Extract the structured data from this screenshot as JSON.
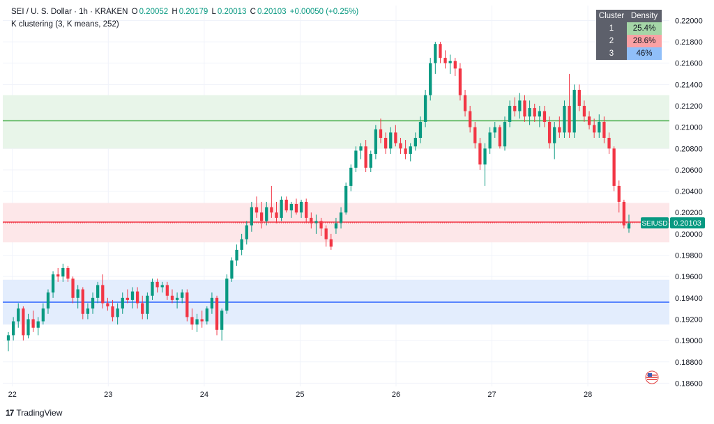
{
  "legend": {
    "symbol_line": "SEI / U. S. Dollar · 1h · KRAKEN",
    "open_label": "O",
    "open": "0.20052",
    "high_label": "H",
    "high": "0.20179",
    "low_label": "L",
    "low": "0.20013",
    "close_label": "C",
    "close": "0.20103",
    "change": "+0.00050 (+0.25%)",
    "indicator": "K clustering (3, K means, 252)"
  },
  "cluster_table": {
    "headers": [
      "Cluster",
      "Density"
    ],
    "rows": [
      {
        "cluster": "1",
        "density": "25.4%",
        "color": "#a5d6a7"
      },
      {
        "cluster": "2",
        "density": "28.6%",
        "color": "#faa1a4"
      },
      {
        "cluster": "3",
        "density": "46%",
        "color": "#90bff9"
      }
    ]
  },
  "price_tag": {
    "symbol": "SEIUSD",
    "price": "0.20103",
    "color": "#089981"
  },
  "watermark": {
    "logo": "17",
    "name": "TradingView"
  },
  "colors": {
    "up": "#089981",
    "down": "#f23645",
    "grid": "#f0f3fa",
    "axis_text": "#131722"
  },
  "chart_data": {
    "type": "candlestick",
    "x_ticks": [
      "22",
      "23",
      "24",
      "25",
      "26",
      "27",
      "28"
    ],
    "y_ticks": [
      "0.22000",
      "0.21800",
      "0.21600",
      "0.21400",
      "0.21200",
      "0.21000",
      "0.20800",
      "0.20600",
      "0.20400",
      "0.20200",
      "0.20000",
      "0.19800",
      "0.19600",
      "0.19400",
      "0.19200",
      "0.19000",
      "0.18800",
      "0.18600"
    ],
    "ylim": [
      0.1857,
      0.2214
    ],
    "x_range": [
      21.9,
      28.85
    ],
    "bands": [
      {
        "name": "1",
        "top": 0.213,
        "bottom": 0.208,
        "center": 0.2106,
        "fill": "#e8f5e9",
        "line": "#4caf50"
      },
      {
        "name": "2",
        "top": 0.2029,
        "bottom": 0.1992,
        "center": 0.2011,
        "fill": "#fde7e9",
        "line": "#f23645"
      },
      {
        "name": "3",
        "top": 0.1957,
        "bottom": 0.1915,
        "center": 0.1936,
        "fill": "#e3edfd",
        "line": "#2962ff"
      }
    ],
    "candles": [
      [
        0.19,
        0.1908,
        0.189,
        0.1905
      ],
      [
        0.1905,
        0.1922,
        0.19,
        0.1918
      ],
      [
        0.1918,
        0.1935,
        0.1912,
        0.193
      ],
      [
        0.193,
        0.1932,
        0.19,
        0.1905
      ],
      [
        0.1905,
        0.1925,
        0.1902,
        0.192
      ],
      [
        0.192,
        0.1928,
        0.1908,
        0.1912
      ],
      [
        0.1912,
        0.1922,
        0.1905,
        0.1918
      ],
      [
        0.1918,
        0.1935,
        0.1915,
        0.193
      ],
      [
        0.193,
        0.1948,
        0.1925,
        0.1945
      ],
      [
        0.1945,
        0.1965,
        0.194,
        0.1962
      ],
      [
        0.1962,
        0.1968,
        0.1955,
        0.196
      ],
      [
        0.196,
        0.1972,
        0.1955,
        0.1968
      ],
      [
        0.1968,
        0.197,
        0.1955,
        0.1958
      ],
      [
        0.1958,
        0.196,
        0.1935,
        0.194
      ],
      [
        0.194,
        0.1952,
        0.193,
        0.1948
      ],
      [
        0.1948,
        0.195,
        0.192,
        0.1925
      ],
      [
        0.1925,
        0.1935,
        0.192,
        0.193
      ],
      [
        0.193,
        0.1945,
        0.1925,
        0.194
      ],
      [
        0.194,
        0.1955,
        0.1935,
        0.1952
      ],
      [
        0.1952,
        0.1962,
        0.193,
        0.1935
      ],
      [
        0.1935,
        0.194,
        0.1928,
        0.1932
      ],
      [
        0.1932,
        0.1938,
        0.1918,
        0.1922
      ],
      [
        0.1922,
        0.1935,
        0.1915,
        0.193
      ],
      [
        0.193,
        0.1945,
        0.1925,
        0.194
      ],
      [
        0.194,
        0.1948,
        0.1935,
        0.1938
      ],
      [
        0.1938,
        0.195,
        0.193,
        0.1946
      ],
      [
        0.1946,
        0.195,
        0.193,
        0.1935
      ],
      [
        0.1935,
        0.1942,
        0.192,
        0.1925
      ],
      [
        0.1925,
        0.1945,
        0.192,
        0.1942
      ],
      [
        0.1942,
        0.1958,
        0.1938,
        0.1955
      ],
      [
        0.1955,
        0.1958,
        0.1945,
        0.195
      ],
      [
        0.195,
        0.1955,
        0.1945,
        0.1952
      ],
      [
        0.1952,
        0.1955,
        0.1938,
        0.1942
      ],
      [
        0.1942,
        0.1948,
        0.1935,
        0.1938
      ],
      [
        0.1938,
        0.1945,
        0.193,
        0.194
      ],
      [
        0.194,
        0.1948,
        0.1935,
        0.1945
      ],
      [
        0.1945,
        0.1948,
        0.1918,
        0.1922
      ],
      [
        0.1922,
        0.193,
        0.191,
        0.1915
      ],
      [
        0.1915,
        0.1925,
        0.1908,
        0.192
      ],
      [
        0.192,
        0.1928,
        0.1912,
        0.1918
      ],
      [
        0.1918,
        0.1932,
        0.1915,
        0.193
      ],
      [
        0.193,
        0.1945,
        0.1925,
        0.194
      ],
      [
        0.194,
        0.1942,
        0.1905,
        0.191
      ],
      [
        0.191,
        0.193,
        0.19,
        0.1928
      ],
      [
        0.1928,
        0.1962,
        0.1925,
        0.1958
      ],
      [
        0.1958,
        0.1978,
        0.1955,
        0.1975
      ],
      [
        0.1975,
        0.199,
        0.197,
        0.1985
      ],
      [
        0.1985,
        0.2,
        0.198,
        0.1995
      ],
      [
        0.1995,
        0.2012,
        0.199,
        0.2008
      ],
      [
        0.2008,
        0.203,
        0.2002,
        0.2025
      ],
      [
        0.2025,
        0.2035,
        0.2015,
        0.202
      ],
      [
        0.202,
        0.203,
        0.2005,
        0.2012
      ],
      [
        0.2012,
        0.203,
        0.2008,
        0.2025
      ],
      [
        0.2025,
        0.2045,
        0.2015,
        0.202
      ],
      [
        0.202,
        0.203,
        0.201,
        0.2015
      ],
      [
        0.2015,
        0.2035,
        0.2012,
        0.2032
      ],
      [
        0.2032,
        0.2035,
        0.202,
        0.2022
      ],
      [
        0.2022,
        0.203,
        0.2015,
        0.2028
      ],
      [
        0.2028,
        0.2033,
        0.2018,
        0.202
      ],
      [
        0.202,
        0.2032,
        0.2015,
        0.203
      ],
      [
        0.203,
        0.2033,
        0.201,
        0.2015
      ],
      [
        0.2015,
        0.202,
        0.2005,
        0.201
      ],
      [
        0.201,
        0.2018,
        0.2,
        0.2012
      ],
      [
        0.2012,
        0.2015,
        0.1998,
        0.2005
      ],
      [
        0.2005,
        0.2008,
        0.1988,
        0.1995
      ],
      [
        0.1995,
        0.2,
        0.1985,
        0.1988
      ],
      [
        0.2005,
        0.2015,
        0.2,
        0.201
      ],
      [
        0.201,
        0.2025,
        0.2005,
        0.202
      ],
      [
        0.202,
        0.2048,
        0.2018,
        0.2045
      ],
      [
        0.2045,
        0.2065,
        0.204,
        0.2062
      ],
      [
        0.2062,
        0.2082,
        0.2058,
        0.2078
      ],
      [
        0.2078,
        0.2085,
        0.207,
        0.2082
      ],
      [
        0.2082,
        0.2088,
        0.2058,
        0.2062
      ],
      [
        0.2062,
        0.2078,
        0.2058,
        0.2075
      ],
      [
        0.2075,
        0.2102,
        0.207,
        0.2098
      ],
      [
        0.2098,
        0.2108,
        0.2085,
        0.209
      ],
      [
        0.209,
        0.2095,
        0.2075,
        0.208
      ],
      [
        0.208,
        0.21,
        0.2075,
        0.2095
      ],
      [
        0.2095,
        0.2102,
        0.2082,
        0.2085
      ],
      [
        0.2085,
        0.209,
        0.2075,
        0.208
      ],
      [
        0.208,
        0.2088,
        0.207,
        0.2075
      ],
      [
        0.2075,
        0.2085,
        0.2068,
        0.2082
      ],
      [
        0.2082,
        0.2095,
        0.2078,
        0.209
      ],
      [
        0.209,
        0.211,
        0.2085,
        0.2105
      ],
      [
        0.2105,
        0.2135,
        0.21,
        0.213
      ],
      [
        0.213,
        0.2165,
        0.2125,
        0.216
      ],
      [
        0.216,
        0.218,
        0.215,
        0.2178
      ],
      [
        0.2178,
        0.218,
        0.216,
        0.2165
      ],
      [
        0.2165,
        0.2172,
        0.2155,
        0.216
      ],
      [
        0.216,
        0.2168,
        0.215,
        0.2162
      ],
      [
        0.2162,
        0.2165,
        0.2148,
        0.2155
      ],
      [
        0.2155,
        0.216,
        0.2125,
        0.213
      ],
      [
        0.213,
        0.2135,
        0.211,
        0.2115
      ],
      [
        0.2115,
        0.212,
        0.2095,
        0.21
      ],
      [
        0.21,
        0.2105,
        0.208,
        0.2085
      ],
      [
        0.2085,
        0.209,
        0.206,
        0.2065
      ],
      [
        0.2065,
        0.2085,
        0.2045,
        0.208
      ],
      [
        0.208,
        0.21,
        0.2075,
        0.2095
      ],
      [
        0.2095,
        0.2105,
        0.209,
        0.21
      ],
      [
        0.21,
        0.2102,
        0.208,
        0.2082
      ],
      [
        0.2082,
        0.211,
        0.2078,
        0.2105
      ],
      [
        0.2105,
        0.2125,
        0.21,
        0.212
      ],
      [
        0.212,
        0.2128,
        0.211,
        0.2115
      ],
      [
        0.2115,
        0.2132,
        0.2108,
        0.2125
      ],
      [
        0.2125,
        0.213,
        0.2105,
        0.211
      ],
      [
        0.211,
        0.2125,
        0.2102,
        0.2118
      ],
      [
        0.2118,
        0.2122,
        0.2105,
        0.211
      ],
      [
        0.211,
        0.212,
        0.21,
        0.2115
      ],
      [
        0.2115,
        0.212,
        0.21,
        0.2105
      ],
      [
        0.2105,
        0.211,
        0.208,
        0.2085
      ],
      [
        0.2085,
        0.2105,
        0.207,
        0.21
      ],
      [
        0.21,
        0.211,
        0.209,
        0.2095
      ],
      [
        0.2095,
        0.2125,
        0.209,
        0.212
      ],
      [
        0.212,
        0.215,
        0.209,
        0.2095
      ],
      [
        0.2095,
        0.214,
        0.209,
        0.2135
      ],
      [
        0.2135,
        0.214,
        0.2115,
        0.212
      ],
      [
        0.212,
        0.2125,
        0.2105,
        0.211
      ],
      [
        0.211,
        0.2115,
        0.2098,
        0.2102
      ],
      [
        0.2102,
        0.2108,
        0.209,
        0.2095
      ],
      [
        0.2095,
        0.2112,
        0.209,
        0.2105
      ],
      [
        0.2105,
        0.211,
        0.2085,
        0.209
      ],
      [
        0.209,
        0.2095,
        0.2075,
        0.208
      ],
      [
        0.208,
        0.2082,
        0.204,
        0.2045
      ],
      [
        0.2045,
        0.205,
        0.202,
        0.203
      ],
      [
        0.203,
        0.2032,
        0.2005,
        0.2008
      ],
      [
        0.2005,
        0.2018,
        0.2001,
        0.201
      ]
    ]
  }
}
